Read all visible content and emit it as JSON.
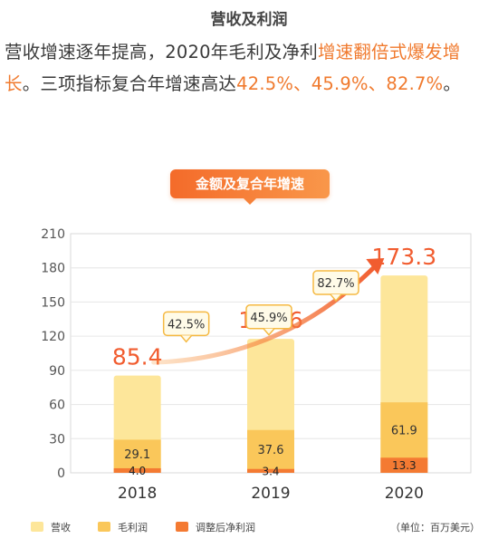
{
  "title": "营收及利润",
  "summary": {
    "part1": "营收增速逐年提高，2020年毛利及净利",
    "part2": "增速翻倍式爆发增长",
    "part3": "。三项指标复合年增速高达",
    "part4": "42.5%、45.9%、82.7%",
    "part5": "。"
  },
  "chart_title": "金额及复合年增速",
  "unit_label": "（单位：百万美元）",
  "colors": {
    "revenue": "#fde69a",
    "gross": "#fac75a",
    "net": "#f47a32",
    "accent": "#f15c2f"
  },
  "legend": [
    {
      "label": "营收",
      "color": "#fde69a"
    },
    {
      "label": "毛利润",
      "color": "#fac75a"
    },
    {
      "label": "调整后净利润",
      "color": "#f47a32"
    }
  ],
  "chart_data": {
    "type": "bar",
    "categories": [
      "2018",
      "2019",
      "2020"
    ],
    "series": [
      {
        "name": "营收",
        "values": [
          85.4,
          117.6,
          173.3
        ]
      },
      {
        "name": "毛利润",
        "values": [
          29.1,
          37.6,
          61.9
        ]
      },
      {
        "name": "调整后净利润",
        "values": [
          4.0,
          3.4,
          13.3
        ]
      }
    ],
    "ylim": [
      0,
      210
    ],
    "yticks": [
      0,
      30,
      60,
      90,
      120,
      150,
      180,
      210
    ],
    "grid": true,
    "legend_position": "bottom",
    "annotations": [
      "42.5%",
      "45.9%",
      "82.7%"
    ]
  }
}
